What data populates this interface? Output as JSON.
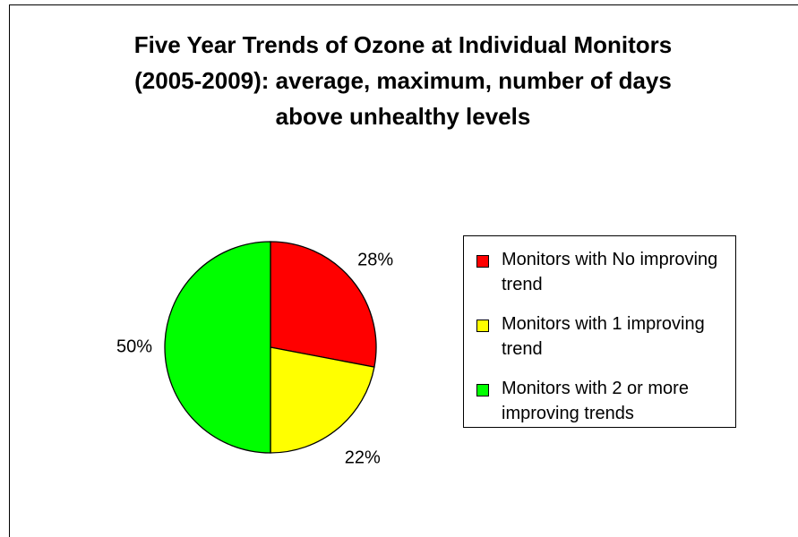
{
  "chart_data": {
    "type": "pie",
    "title": "Five Year Trends of Ozone at Individual Monitors (2005-2009): average, maximum, number of days above unhealthy levels",
    "categories": [
      "Monitors with No improving trend",
      "Monitors with 1 improving trend",
      "Monitors with 2 or more improving trends"
    ],
    "values": [
      28,
      22,
      50
    ],
    "value_labels": [
      "28%",
      "22%",
      "50%"
    ],
    "colors": [
      "#ff0000",
      "#ffff00",
      "#00ff00"
    ],
    "legend": "right"
  }
}
